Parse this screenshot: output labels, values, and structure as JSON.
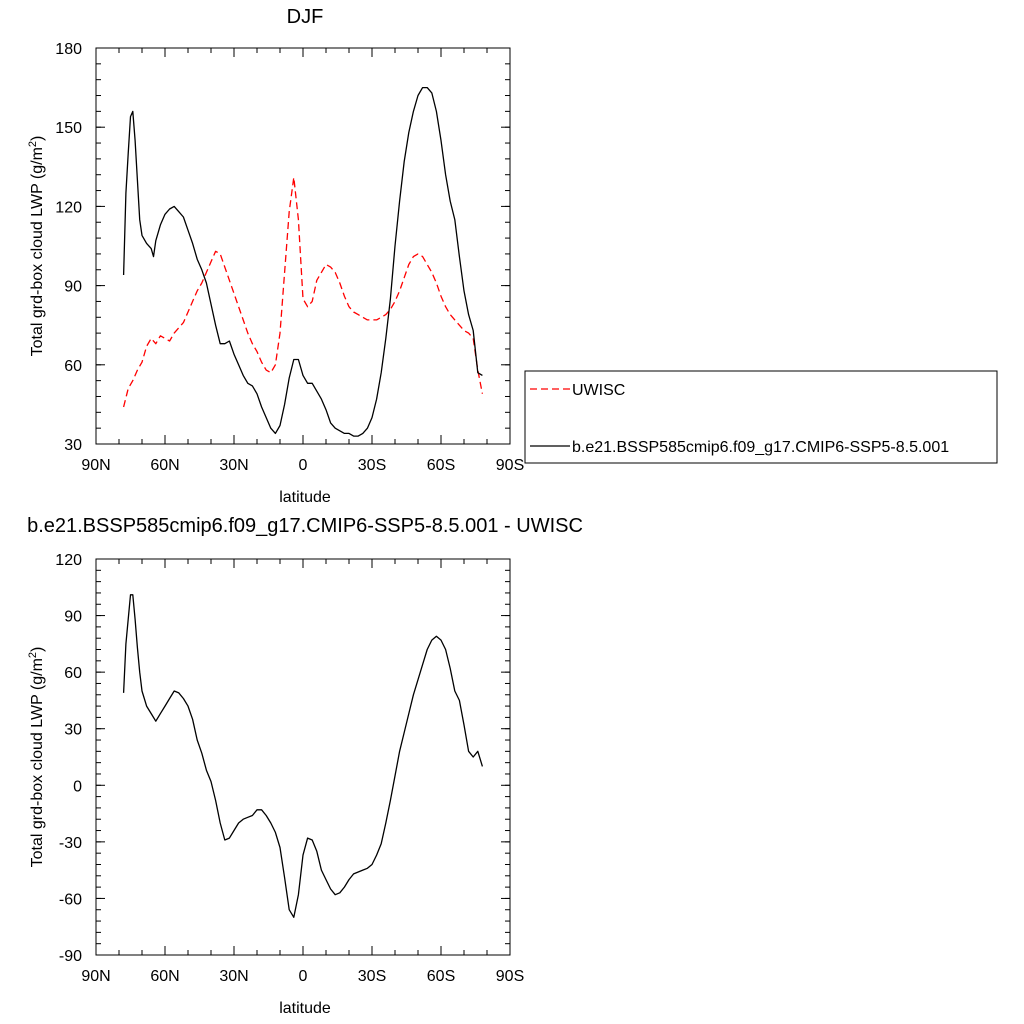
{
  "chart_data": [
    {
      "type": "line",
      "title": "DJF",
      "xlabel": "latitude",
      "ylabel": "Total grd-box cloud LWP (g/m",
      "ylabel_sup": "2",
      "ylabel_end": ")",
      "xlim": [
        90,
        -90
      ],
      "ylim": [
        30,
        180
      ],
      "x_ticks": [
        90,
        60,
        30,
        0,
        -30,
        -60,
        -90
      ],
      "x_tick_labels": [
        "90N",
        "60N",
        "30N",
        "0",
        "30S",
        "60S",
        "90S"
      ],
      "y_ticks": [
        30,
        60,
        90,
        120,
        150,
        180
      ],
      "y_tick_labels": [
        "30",
        "60",
        "90",
        "120",
        "150",
        "180"
      ],
      "legend_position": "right",
      "series": [
        {
          "name": "UWISC",
          "color": "#ff0000",
          "dash": "dashed",
          "x": [
            78,
            76,
            74,
            72,
            70,
            68,
            66,
            64,
            62,
            60,
            58,
            56,
            54,
            52,
            50,
            48,
            46,
            44,
            42,
            40,
            38,
            36,
            34,
            32,
            30,
            28,
            26,
            24,
            22,
            20,
            18,
            16,
            14,
            12,
            10,
            8,
            6,
            4,
            2,
            0,
            -2,
            -4,
            -6,
            -8,
            -10,
            -12,
            -14,
            -16,
            -18,
            -20,
            -22,
            -24,
            -26,
            -28,
            -30,
            -32,
            -34,
            -36,
            -38,
            -40,
            -42,
            -44,
            -46,
            -48,
            -50,
            -52,
            -54,
            -56,
            -58,
            -60,
            -62,
            -64,
            -66,
            -68,
            -70,
            -72,
            -74,
            -76,
            -78
          ],
          "y": [
            44,
            51,
            54,
            58,
            61,
            67,
            70,
            68,
            71,
            70,
            69,
            72,
            74,
            76,
            80,
            84,
            88,
            91,
            95,
            99,
            103,
            102,
            97,
            92,
            87,
            82,
            77,
            72,
            68,
            65,
            61,
            58,
            57,
            60,
            72,
            95,
            118,
            131,
            115,
            85,
            82,
            84,
            92,
            95,
            98,
            97,
            95,
            91,
            86,
            82,
            80,
            79,
            78,
            77,
            77,
            77,
            78,
            79,
            81,
            84,
            88,
            93,
            98,
            101,
            102,
            101,
            98,
            95,
            91,
            86,
            82,
            79,
            77,
            75,
            73,
            72,
            70,
            58,
            49
          ]
        },
        {
          "name": "b.e21.BSSP585cmip6.f09_g17.CMIP6-SSP5-8.5.001",
          "color": "#000000",
          "dash": "solid",
          "x": [
            78,
            77,
            76,
            75,
            74,
            73,
            72,
            71,
            70,
            68,
            66,
            65,
            64,
            62,
            60,
            58,
            56,
            54,
            52,
            50,
            48,
            46,
            44,
            42,
            40,
            38,
            36,
            34,
            32,
            30,
            28,
            26,
            24,
            22,
            20,
            18,
            16,
            14,
            12,
            10,
            8,
            6,
            4,
            2,
            0,
            -2,
            -4,
            -6,
            -8,
            -10,
            -12,
            -14,
            -16,
            -18,
            -20,
            -22,
            -24,
            -26,
            -28,
            -30,
            -32,
            -34,
            -36,
            -38,
            -40,
            -42,
            -44,
            -46,
            -48,
            -50,
            -52,
            -54,
            -56,
            -58,
            -60,
            -62,
            -64,
            -66,
            -68,
            -70,
            -72,
            -74,
            -76,
            -78
          ],
          "y": [
            94,
            125,
            140,
            154,
            156,
            145,
            130,
            115,
            109,
            106,
            104,
            101,
            107,
            113,
            117,
            119,
            120,
            118,
            116,
            111,
            106,
            100,
            96,
            91,
            83,
            75,
            68,
            68,
            69,
            64,
            60,
            56,
            53,
            52,
            49,
            44,
            40,
            36,
            34,
            37,
            45,
            55,
            62,
            62,
            56,
            53,
            53,
            50,
            47,
            43,
            38,
            36,
            35,
            34,
            34,
            33,
            33,
            34,
            36,
            40,
            47,
            57,
            70,
            85,
            105,
            122,
            137,
            148,
            156,
            162,
            165,
            165,
            163,
            156,
            145,
            132,
            122,
            115,
            101,
            88,
            79,
            73,
            57,
            56
          ]
        }
      ]
    },
    {
      "type": "line",
      "title": "b.e21.BSSP585cmip6.f09_g17.CMIP6-SSP5-8.5.001 - UWISC",
      "xlabel": "latitude",
      "ylabel": "Total grd-box cloud LWP (g/m",
      "ylabel_sup": "2",
      "ylabel_end": ")",
      "xlim": [
        90,
        -90
      ],
      "ylim": [
        -90,
        120
      ],
      "x_ticks": [
        90,
        60,
        30,
        0,
        -30,
        -60,
        -90
      ],
      "x_tick_labels": [
        "90N",
        "60N",
        "30N",
        "0",
        "30S",
        "60S",
        "90S"
      ],
      "y_ticks": [
        -90,
        -60,
        -30,
        0,
        30,
        60,
        90,
        120
      ],
      "y_tick_labels": [
        "-90",
        "-60",
        "-30",
        "0",
        "30",
        "60",
        "90",
        "120"
      ],
      "series": [
        {
          "color": "#000000",
          "dash": "solid",
          "x": [
            78,
            77,
            76,
            75,
            74,
            73,
            72,
            71,
            70,
            68,
            66,
            64,
            62,
            60,
            58,
            56,
            54,
            52,
            50,
            48,
            46,
            44,
            42,
            40,
            38,
            36,
            34,
            32,
            30,
            28,
            26,
            24,
            22,
            20,
            18,
            16,
            14,
            12,
            10,
            8,
            6,
            4,
            2,
            0,
            -2,
            -4,
            -6,
            -8,
            -10,
            -12,
            -14,
            -16,
            -18,
            -20,
            -22,
            -24,
            -26,
            -28,
            -30,
            -32,
            -34,
            -36,
            -38,
            -40,
            -42,
            -44,
            -46,
            -48,
            -50,
            -52,
            -54,
            -56,
            -58,
            -60,
            -62,
            -64,
            -66,
            -68,
            -70,
            -72,
            -74,
            -76,
            -78
          ],
          "y": [
            49,
            75,
            88,
            101,
            101,
            88,
            73,
            60,
            50,
            42,
            38,
            34,
            38,
            42,
            46,
            50,
            49,
            46,
            42,
            35,
            24,
            17,
            8,
            2,
            -8,
            -20,
            -29,
            -28,
            -24,
            -20,
            -18,
            -17,
            -16,
            -13,
            -13,
            -16,
            -20,
            -25,
            -33,
            -49,
            -66,
            -70,
            -58,
            -37,
            -28,
            -29,
            -35,
            -45,
            -50,
            -55,
            -58,
            -57,
            -54,
            -50,
            -47,
            -46,
            -45,
            -44,
            -42,
            -37,
            -31,
            -20,
            -8,
            5,
            18,
            28,
            38,
            48,
            56,
            64,
            72,
            77,
            79,
            77,
            72,
            62,
            50,
            45,
            32,
            18,
            15,
            18,
            10
          ]
        }
      ]
    }
  ]
}
